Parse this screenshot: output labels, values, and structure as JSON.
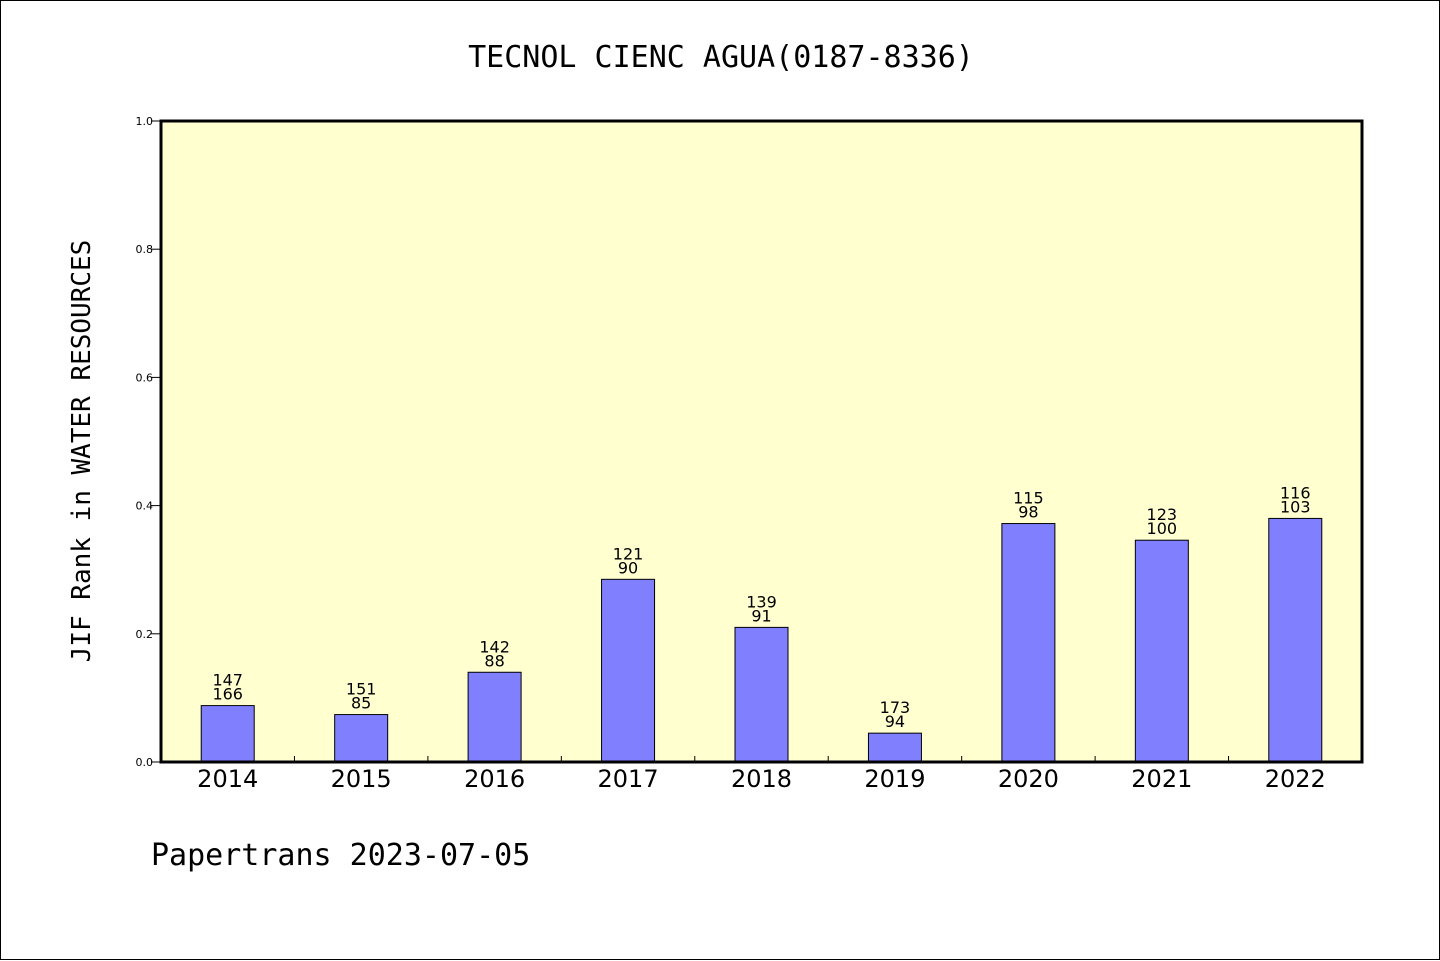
{
  "chart_data": {
    "type": "bar",
    "title": "TECNOL CIENC AGUA(0187-8336)",
    "xlabel": "",
    "ylabel": "JIF Rank in WATER RESOURCES",
    "ylim": [
      0,
      1.0
    ],
    "yticks": [
      "0.0",
      "0.2",
      "0.4",
      "0.6",
      "0.8",
      "1.0"
    ],
    "grid": false,
    "categories": [
      "2014",
      "2015",
      "2016",
      "2017",
      "2018",
      "2019",
      "2020",
      "2021",
      "2022"
    ],
    "values": [
      0.088,
      0.074,
      0.14,
      0.285,
      0.21,
      0.045,
      0.372,
      0.346,
      0.38
    ],
    "labels_top": [
      "147",
      "151",
      "142",
      "121",
      "139",
      "173",
      "115",
      "123",
      "116"
    ],
    "labels_bottom": [
      "166",
      "85",
      "88",
      "90",
      "91",
      "94",
      "98",
      "100",
      "103"
    ],
    "colors": {
      "plot_background": "#ffffd0",
      "bar_fill": "#8080ff",
      "bar_stroke": "#000000"
    }
  },
  "footer": "Papertrans 2023-07-05"
}
